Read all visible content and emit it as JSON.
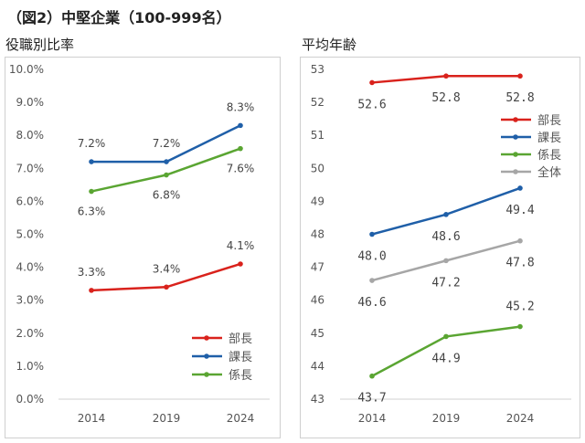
{
  "figure_title": "（図2）中堅企業（100-999名）",
  "chart_data": [
    {
      "type": "line",
      "title": "役職別比率",
      "categories": [
        "2014",
        "2019",
        "2024"
      ],
      "y_ticks": [
        "0.0%",
        "1.0%",
        "2.0%",
        "3.0%",
        "4.0%",
        "5.0%",
        "6.0%",
        "7.0%",
        "8.0%",
        "9.0%",
        "10.0%"
      ],
      "ylim": [
        0,
        10
      ],
      "grid": false,
      "legend_position": "bottom-right",
      "series": [
        {
          "name": "部長",
          "color": "#d9221c",
          "values": [
            3.3,
            3.4,
            4.1
          ],
          "labels": [
            "3.3%",
            "3.4%",
            "4.1%"
          ]
        },
        {
          "name": "課長",
          "color": "#1f5fa8",
          "values": [
            7.2,
            7.2,
            8.3
          ],
          "labels": [
            "7.2%",
            "7.2%",
            "8.3%"
          ]
        },
        {
          "name": "係長",
          "color": "#5aa532",
          "values": [
            6.3,
            6.8,
            7.6
          ],
          "labels": [
            "6.3%",
            "6.8%",
            "7.6%"
          ]
        }
      ]
    },
    {
      "type": "line",
      "title": "平均年齢",
      "categories": [
        "2014",
        "2019",
        "2024"
      ],
      "y_ticks": [
        "43",
        "44",
        "45",
        "46",
        "47",
        "48",
        "49",
        "50",
        "51",
        "52",
        "53"
      ],
      "ylim": [
        43,
        53
      ],
      "grid": false,
      "legend_position": "top-right",
      "series": [
        {
          "name": "部長",
          "color": "#d9221c",
          "values": [
            52.6,
            52.8,
            52.8
          ],
          "labels": [
            "52.6",
            "52.8",
            "52.8"
          ]
        },
        {
          "name": "課長",
          "color": "#1f5fa8",
          "values": [
            48.0,
            48.6,
            49.4
          ],
          "labels": [
            "48.0",
            "48.6",
            "49.4"
          ]
        },
        {
          "name": "係長",
          "color": "#5aa532",
          "values": [
            43.7,
            44.9,
            45.2
          ],
          "labels": [
            "43.7",
            "44.9",
            "45.2"
          ]
        },
        {
          "name": "全体",
          "color": "#a6a6a6",
          "values": [
            46.6,
            47.2,
            47.8
          ],
          "labels": [
            "46.6",
            "47.2",
            "47.8"
          ]
        }
      ]
    }
  ]
}
